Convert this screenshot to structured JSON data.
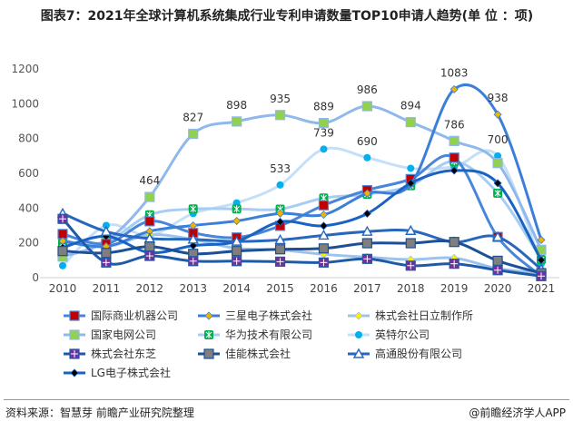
{
  "title": "图表7：2021年全球计算机系统集成行业专利申请数量TOP10申请人趋势(单 位 ：项)",
  "footer": {
    "source": "资料来源：智慧芽 前瞻产业研究院整理",
    "brand": "@前瞻经济学人APP"
  },
  "chart_data": {
    "type": "line",
    "title": "图表7：2021年全球计算机系统集成行业专利申请数量TOP10申请人趋势(单 位 ：项)",
    "xlabel": "",
    "ylabel": "",
    "x": [
      "2010",
      "2011",
      "2012",
      "2013",
      "2014",
      "2015",
      "2016",
      "2017",
      "2018",
      "2019",
      "2020",
      "2021"
    ],
    "ylim": [
      0,
      1200
    ],
    "yticks": [
      "0",
      "200",
      "400",
      "600",
      "800",
      "1000",
      "1200"
    ],
    "legend_position": "bottom",
    "series": [
      {
        "name": "国际商业机器公司",
        "marker": "square",
        "color": "#4a86d8",
        "markerColor": "#c00000",
        "values": [
          251,
          195,
          324,
          257,
          231,
          298,
          416,
          503,
          567,
          690,
          234,
          9
        ]
      },
      {
        "name": "三星电子株式会社",
        "marker": "diamond",
        "color": "#3b7fd9",
        "markerColor": "#f0b400",
        "values": [
          210,
          180,
          267,
          300,
          326,
          369,
          362,
          485,
          537,
          1083,
          938,
          217
        ],
        "labels": {
          "9": "1083",
          "10": "938"
        }
      },
      {
        "name": "株式会社日立制作所",
        "marker": "diamond",
        "color": "#9cc3ee",
        "markerColor": "#ffee00",
        "values": [
          215,
          179,
          246,
          220,
          168,
          160,
          134,
          118,
          104,
          113,
          52,
          26
        ]
      },
      {
        "name": "国家电网公司",
        "marker": "square",
        "color": "#8fb8ec",
        "markerColor": "#92d050",
        "values": [
          121,
          210,
          464,
          827,
          898,
          935,
          889,
          986,
          894,
          786,
          659,
          160
        ],
        "labels": {
          "2": "464",
          "3": "827",
          "4": "898",
          "5": "935",
          "6": "889",
          "7": "986",
          "8": "894",
          "9": "786"
        }
      },
      {
        "name": "华为技术有限公司",
        "marker": "snowflake",
        "color": "#a8cdf2",
        "markerColor": "#00b050",
        "values": [
          199,
          208,
          361,
          395,
          395,
          394,
          458,
          480,
          529,
          668,
          486,
          104
        ]
      },
      {
        "name": "英特尔公司",
        "marker": "circle",
        "color": "#c5dff7",
        "markerColor": "#00b0f0",
        "values": [
          69,
          300,
          243,
          369,
          430,
          533,
          739,
          690,
          629,
          638,
          700,
          80
        ],
        "labels": {
          "5": "533",
          "6": "739",
          "7": "690",
          "10": "700"
        }
      },
      {
        "name": "株式会社东芝",
        "marker": "squarecross",
        "color": "#1f5aa8",
        "markerColor": "#7030a0",
        "values": [
          338,
          87,
          125,
          95,
          95,
          92,
          87,
          108,
          69,
          80,
          43,
          9
        ]
      },
      {
        "name": "佳能株式会社",
        "marker": "square",
        "color": "#1d4f96",
        "markerColor": "#7f7f7f",
        "values": [
          153,
          142,
          179,
          137,
          153,
          163,
          168,
          198,
          198,
          205,
          97,
          26
        ]
      },
      {
        "name": "高通股份有限公司",
        "marker": "triangle",
        "color": "#2767bd",
        "markerColor": "#ffffff",
        "values": [
          369,
          265,
          225,
          220,
          208,
          217,
          243,
          265,
          270,
          205,
          234,
          49
        ]
      },
      {
        "name": "LG电子株式会社",
        "marker": "diamond",
        "color": "#1a62c4",
        "markerColor": "#000000",
        "values": [
          173,
          238,
          144,
          184,
          208,
          321,
          298,
          368,
          543,
          616,
          543,
          101
        ]
      }
    ]
  }
}
